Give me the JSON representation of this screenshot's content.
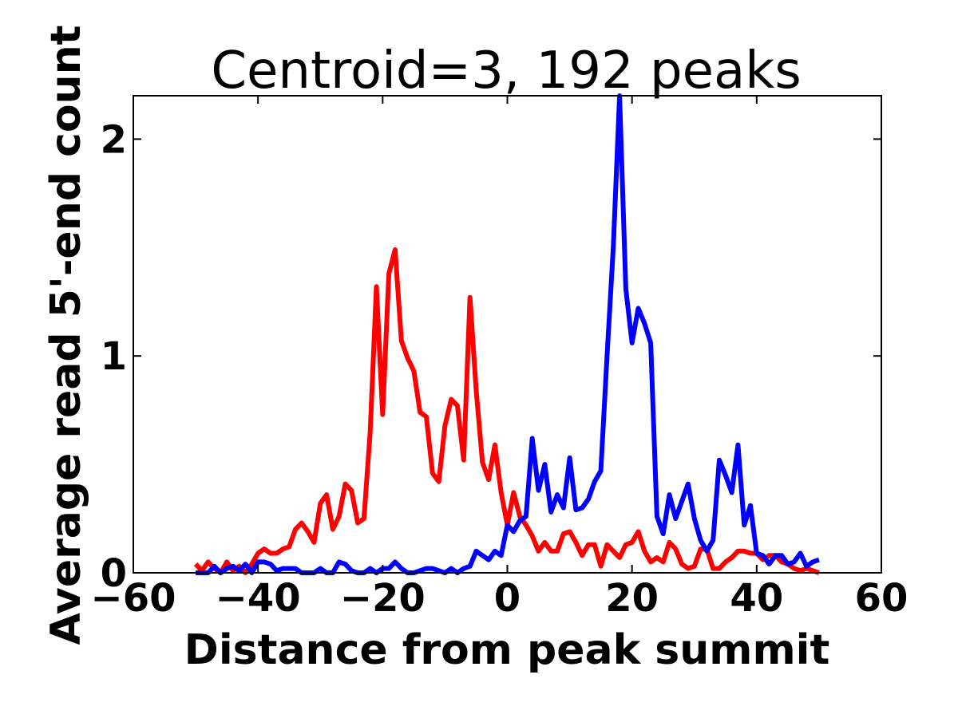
{
  "chart_data": {
    "type": "line",
    "title": "Centroid=3, 192 peaks",
    "xlabel": "Distance from peak summit",
    "ylabel": "Average read 5'-end count",
    "xlim": [
      -60,
      60
    ],
    "ylim": [
      0,
      2.2
    ],
    "xticks": [
      -60,
      -40,
      -20,
      0,
      20,
      40,
      60
    ],
    "xtick_labels": [
      "−60",
      "−40",
      "−20",
      "0",
      "20",
      "40",
      "60"
    ],
    "yticks": [
      0,
      1,
      2
    ],
    "ytick_labels": [
      "0",
      "1",
      "2"
    ],
    "grid": false,
    "legend": "none",
    "x": [
      -50,
      -49,
      -48,
      -47,
      -46,
      -45,
      -44,
      -43,
      -42,
      -41,
      -40,
      -39,
      -38,
      -37,
      -36,
      -35,
      -34,
      -33,
      -32,
      -31,
      -30,
      -29,
      -28,
      -27,
      -26,
      -25,
      -24,
      -23,
      -22,
      -21,
      -20,
      -19,
      -18,
      -17,
      -16,
      -15,
      -14,
      -13,
      -12,
      -11,
      -10,
      -9,
      -8,
      -7,
      -6,
      -5,
      -4,
      -3,
      -2,
      -1,
      0,
      1,
      2,
      3,
      4,
      5,
      6,
      7,
      8,
      9,
      10,
      11,
      12,
      13,
      14,
      15,
      16,
      17,
      18,
      19,
      20,
      21,
      22,
      23,
      24,
      25,
      26,
      27,
      28,
      29,
      30,
      31,
      32,
      33,
      34,
      35,
      36,
      37,
      38,
      39,
      40,
      41,
      42,
      43,
      44,
      45,
      46,
      47,
      48,
      49,
      50
    ],
    "series": [
      {
        "name": "red",
        "color": "#ff0000",
        "values": [
          0.04,
          0.01,
          0.05,
          0.02,
          0.0,
          0.05,
          0.01,
          0.03,
          0.0,
          0.04,
          0.09,
          0.11,
          0.09,
          0.09,
          0.11,
          0.12,
          0.2,
          0.23,
          0.19,
          0.14,
          0.32,
          0.36,
          0.2,
          0.26,
          0.41,
          0.38,
          0.23,
          0.25,
          0.65,
          1.32,
          0.73,
          1.38,
          1.49,
          1.07,
          0.99,
          0.93,
          0.74,
          0.72,
          0.46,
          0.42,
          0.68,
          0.8,
          0.77,
          0.52,
          1.27,
          0.84,
          0.51,
          0.43,
          0.59,
          0.37,
          0.22,
          0.37,
          0.26,
          0.22,
          0.17,
          0.1,
          0.14,
          0.1,
          0.1,
          0.18,
          0.19,
          0.14,
          0.08,
          0.13,
          0.13,
          0.03,
          0.13,
          0.1,
          0.07,
          0.13,
          0.14,
          0.19,
          0.1,
          0.05,
          0.07,
          0.05,
          0.14,
          0.11,
          0.04,
          0.02,
          0.03,
          0.11,
          0.11,
          0.02,
          0.02,
          0.05,
          0.07,
          0.1,
          0.1,
          0.09,
          0.09,
          0.06,
          0.08,
          0.08,
          0.05,
          0.04,
          0.02,
          0.01,
          0.02,
          0.01,
          0.0
        ]
      },
      {
        "name": "blue",
        "color": "#0000ff",
        "values": [
          0.0,
          0.0,
          0.0,
          0.03,
          0.0,
          0.02,
          0.03,
          0.01,
          0.04,
          0.0,
          0.05,
          0.05,
          0.04,
          0.01,
          0.02,
          0.02,
          0.02,
          0.0,
          0.0,
          0.0,
          0.02,
          0.0,
          0.0,
          0.05,
          0.04,
          0.01,
          0.0,
          0.0,
          0.02,
          0.0,
          0.02,
          0.02,
          0.05,
          0.02,
          0.0,
          0.0,
          0.01,
          0.02,
          0.02,
          0.01,
          0.0,
          0.02,
          0.0,
          0.02,
          0.03,
          0.1,
          0.08,
          0.06,
          0.1,
          0.08,
          0.22,
          0.19,
          0.24,
          0.26,
          0.62,
          0.38,
          0.5,
          0.28,
          0.36,
          0.3,
          0.53,
          0.29,
          0.3,
          0.34,
          0.42,
          0.47,
          1.0,
          1.5,
          2.2,
          1.31,
          1.06,
          1.22,
          1.15,
          1.06,
          0.26,
          0.18,
          0.36,
          0.25,
          0.33,
          0.41,
          0.25,
          0.15,
          0.1,
          0.15,
          0.52,
          0.45,
          0.37,
          0.59,
          0.22,
          0.31,
          0.09,
          0.08,
          0.04,
          0.08,
          0.08,
          0.04,
          0.05,
          0.09,
          0.03,
          0.05,
          0.06
        ]
      }
    ]
  }
}
